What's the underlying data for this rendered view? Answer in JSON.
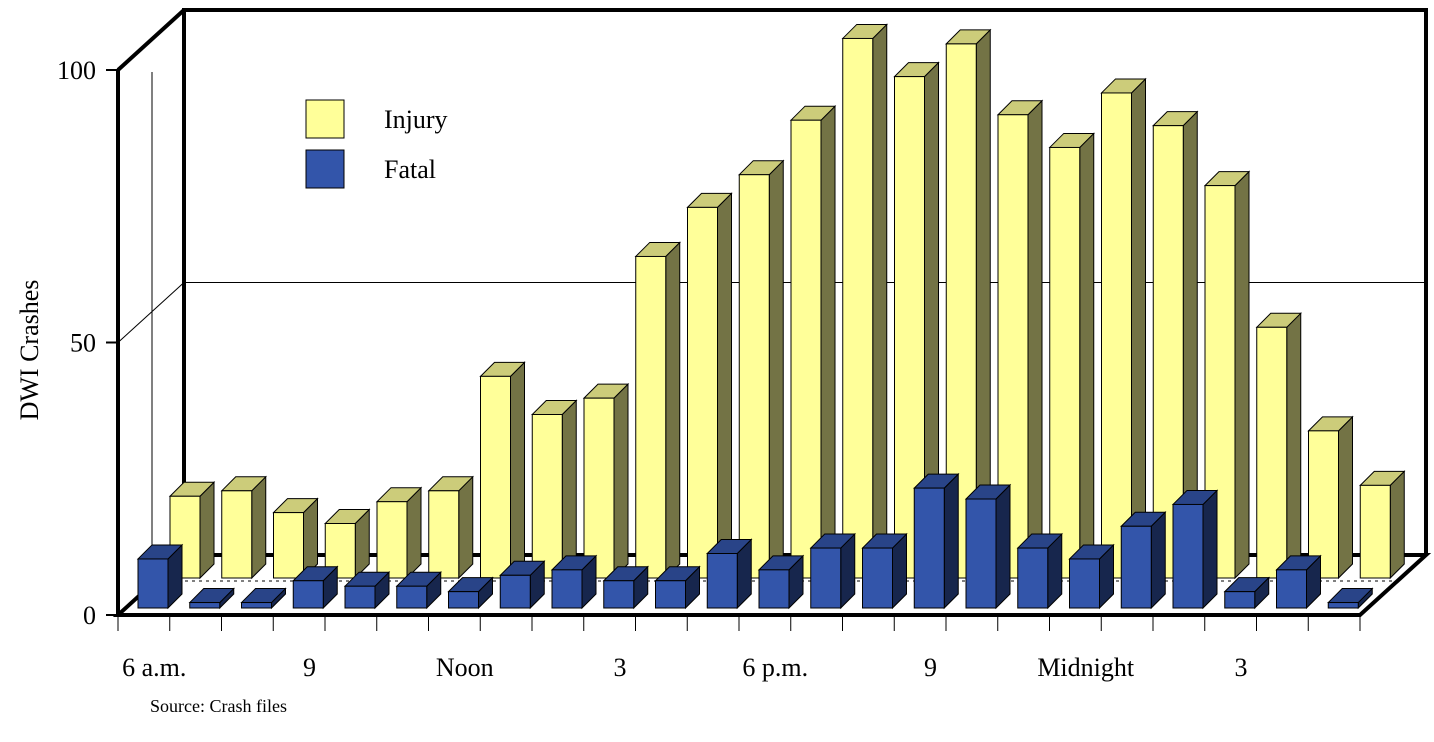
{
  "chart_data": {
    "type": "bar",
    "title": "",
    "xlabel": "",
    "ylabel": "DWI Crashes",
    "ylim": [
      0,
      100
    ],
    "y_ticks": [
      "0",
      "50",
      "100"
    ],
    "x_tick_labels": [
      "6 a.m.",
      "9",
      "Noon",
      "3",
      "6 p.m.",
      "9",
      "Midnight",
      "3"
    ],
    "x_tick_label_hours": [
      0,
      3,
      6,
      9,
      12,
      15,
      18,
      21
    ],
    "hours": 24,
    "grid": "single horizontal gridline at 50 on back wall",
    "legend_placement": "top-left",
    "series": [
      {
        "name": "Injury",
        "color": "#ffff99",
        "values": [
          15,
          16,
          12,
          10,
          14,
          16,
          37,
          30,
          33,
          59,
          68,
          74,
          84,
          99,
          92,
          98,
          85,
          79,
          89,
          83,
          72,
          46,
          27,
          17
        ]
      },
      {
        "name": "Fatal",
        "color": "#3355aa",
        "values": [
          9,
          1,
          1,
          5,
          4,
          4,
          3,
          6,
          7,
          5,
          5,
          10,
          7,
          11,
          11,
          22,
          20,
          11,
          9,
          15,
          19,
          3,
          7,
          1
        ]
      }
    ]
  },
  "source_note": "Source: Crash files"
}
